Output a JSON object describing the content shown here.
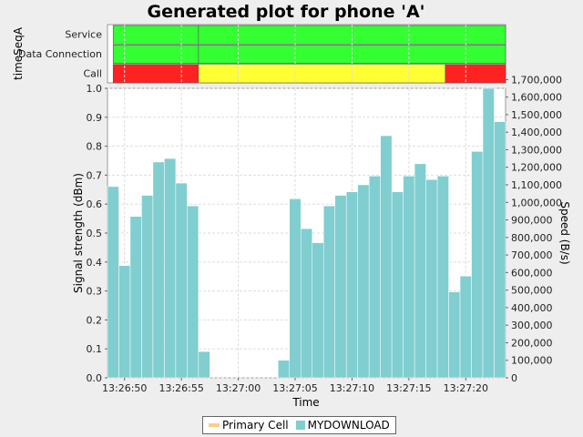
{
  "title": "Generated plot for phone 'A'",
  "status_panel": {
    "axis_label": "timeSeqA",
    "rows": [
      "Service",
      "Data Connection",
      "Call"
    ],
    "segments": {
      "Service": [
        {
          "from": "13:26:49",
          "to": "13:26:56.5",
          "color": "#33ff33"
        },
        {
          "from": "13:26:56.5",
          "to": "13:27:23.5",
          "color": "#33ff33"
        }
      ],
      "Data Connection": [
        {
          "from": "13:26:49",
          "to": "13:26:56.5",
          "color": "#33ff33"
        },
        {
          "from": "13:26:56.5",
          "to": "13:27:23.5",
          "color": "#33ff33"
        }
      ],
      "Call": [
        {
          "from": "13:26:49",
          "to": "13:26:56.5",
          "color": "#ff2222"
        },
        {
          "from": "13:26:56.5",
          "to": "13:27:18.2",
          "color": "#ffff33"
        },
        {
          "from": "13:27:18.2",
          "to": "13:27:23.5",
          "color": "#ff2222"
        }
      ]
    }
  },
  "chart_data": {
    "type": "bar",
    "xlabel": "Time",
    "ylabel": "Signal strength (dBm)",
    "y2label": "Speed (B/s)",
    "x_range": [
      "13:26:48.5",
      "13:27:23.5"
    ],
    "x_ticks": [
      "13:26:50",
      "13:26:55",
      "13:27:00",
      "13:27:05",
      "13:27:10",
      "13:27:15",
      "13:27:20"
    ],
    "y_range": [
      0,
      1.0
    ],
    "y_ticks": [
      "0.0",
      "0.1",
      "0.2",
      "0.3",
      "0.4",
      "0.5",
      "0.6",
      "0.7",
      "0.8",
      "0.9",
      "1.0"
    ],
    "y2_range": [
      0,
      1650000
    ],
    "y2_ticks": [
      "0",
      "100,000",
      "200,000",
      "300,000",
      "400,000",
      "500,000",
      "600,000",
      "700,000",
      "800,000",
      "900,000",
      "1,000,000",
      "1,100,000",
      "1,200,000",
      "1,300,000",
      "1,400,000",
      "1,500,000",
      "1,600,000",
      "1,700,000"
    ],
    "grid": true,
    "legend_position": "bottom",
    "series": [
      {
        "name": "Primary Cell",
        "color": "#ffcc88",
        "values": []
      },
      {
        "name": "MYDOWNLOAD",
        "color": "#80ced0",
        "bar_start": "13:26:48.5",
        "bar_width_s": 1,
        "values": [
          1090000,
          640000,
          920000,
          1040000,
          1230000,
          1250000,
          1110000,
          980000,
          150000,
          0,
          0,
          0,
          0,
          0,
          0,
          100000,
          1020000,
          850000,
          770000,
          980000,
          1040000,
          1060000,
          1100000,
          1150000,
          1380000,
          1060000,
          1150000,
          1220000,
          1130000,
          1150000,
          490000,
          580000,
          1290000,
          1650000,
          1460000
        ]
      }
    ]
  }
}
